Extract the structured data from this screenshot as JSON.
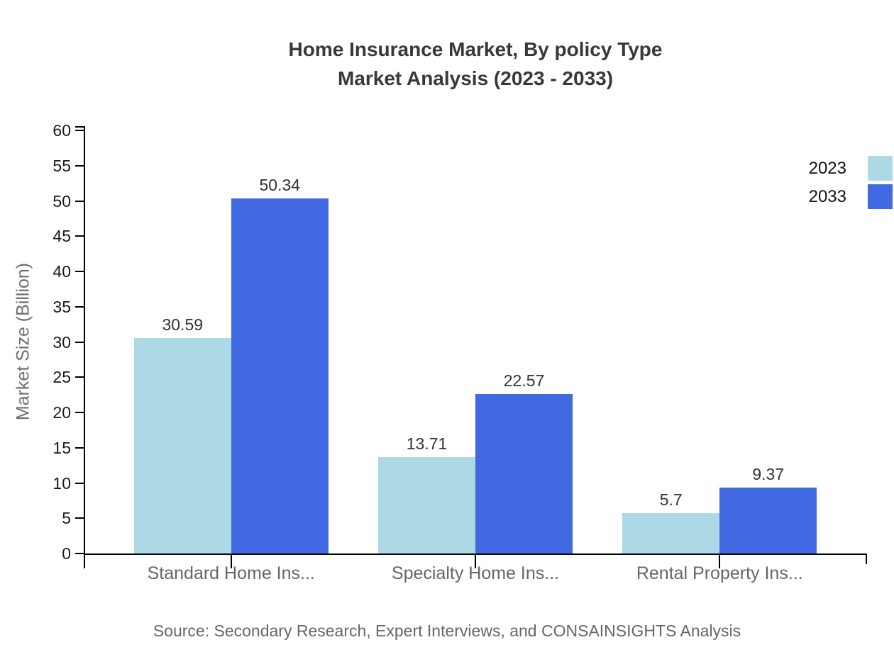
{
  "title": {
    "line1": "Home Insurance Market, By policy Type",
    "line2": "Market Analysis (2023 - 2033)"
  },
  "source_note": "Source: Secondary Research, Expert Interviews, and CONSAINSIGHTS Analysis",
  "chart_data": {
    "type": "bar",
    "title": "Home Insurance Market, By policy Type — Market Analysis (2023 - 2033)",
    "categories": [
      "Standard Home Ins...",
      "Specialty Home Ins...",
      "Rental Property Ins..."
    ],
    "series": [
      {
        "name": "2023",
        "color": "#ADD8E6",
        "values": [
          30.59,
          13.71,
          5.7
        ]
      },
      {
        "name": "2033",
        "color": "#4169E1",
        "values": [
          50.34,
          22.57,
          9.37
        ]
      }
    ],
    "xlabel": "",
    "ylabel": "Market Size (Billion)",
    "ylim": [
      0,
      60
    ],
    "ytick_step": 5,
    "grid": false,
    "legend_position": "top-right",
    "axis_color": "#000000",
    "value_label_color": "#333333",
    "tick_label_color": "#1a1a1a",
    "category_label_color": "#666666"
  }
}
